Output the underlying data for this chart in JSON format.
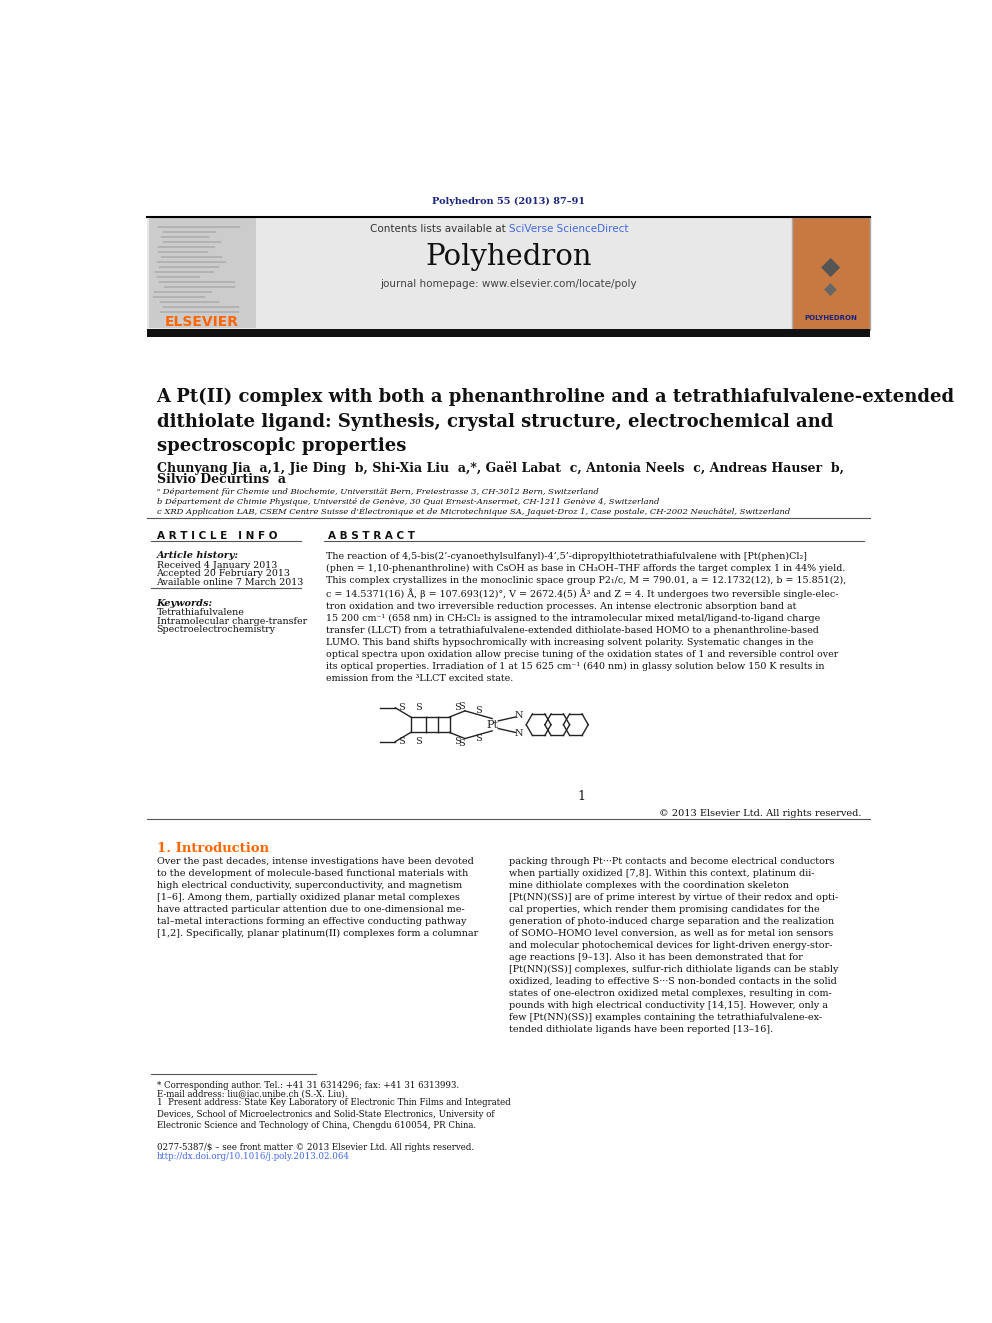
{
  "journal_ref": "Polyhedron 55 (2013) 87–91",
  "journal_ref_color": "#1a237e",
  "header_bg": "#e8e8e8",
  "elsevier_color": "#FF6600",
  "sciverse_color": "#4169E1",
  "journal_name": "Polyhedron",
  "journal_url": "journal homepage: www.elsevier.com/locate/poly",
  "title": "A Pt(II) complex with both a phenanthroline and a tetrathiafulvalene-extended\ndithiolate ligand: Synthesis, crystal structure, electrochemical and\nspectroscopic properties",
  "authors_line1": "Chunyang Jia  a,1, Jie Ding  b, Shi-Xia Liu  a,*, Gaël Labat  c, Antonia Neels  c, Andreas Hauser  b,",
  "authors_line2": "Silvio Decurtins  a",
  "affil_a": "ᵃ Département für Chemie und Biochemie, Universität Bern, Freiestrasse 3, CH-3012 Bern, Switzerland",
  "affil_b": "b Département de Chimie Physique, Université de Genève, 30 Quai Ernest-Ansermet, CH-1211 Genève 4, Switzerland",
  "affil_c": "c XRD Application LAB, CSEM Centre Suisse d’Électronique et de Microtechnique SA, Jaquet-Droz 1, Case postale, CH-2002 Neuchâtel, Switzerland",
  "article_info_header": "A R T I C L E   I N F O",
  "abstract_header": "A B S T R A C T",
  "article_history_label": "Article history:",
  "received": "Received 4 January 2013",
  "accepted": "Accepted 20 February 2013",
  "available": "Available online 7 March 2013",
  "keywords_label": "Keywords:",
  "kw1": "Tetrathiafulvalene",
  "kw2": "Intramolecular charge-transfer",
  "kw3": "Spectroelectrochemistry",
  "abstract_text": "The reaction of 4,5-bis(2’-cyanoethylsulfanyl)-4’,5’-dipropylthiotetrathiafulvalene with [Pt(phen)Cl₂]\n(phen = 1,10-phenanthroline) with CsOH as base in CH₃OH–THF affords the target complex 1 in 44% yield.\nThis complex crystallizes in the monoclinic space group P2₁/c, M = 790.01, a = 12.1732(12), b = 15.851(2),\nc = 14.5371(16) Å, β = 107.693(12)°, V = 2672.4(5) Å³ and Z = 4. It undergoes two reversible single-elec-\ntron oxidation and two irreversible reduction processes. An intense electronic absorption band at\n15 200 cm⁻¹ (658 nm) in CH₂Cl₂ is assigned to the intramolecular mixed metal/ligand-to-ligand charge\ntransfer (LLCT) from a tetrathiafulvalene-extended dithiolate-based HOMO to a phenanthroline-based\nLUMO. This band shifts hypsochromically with increasing solvent polarity. Systematic changes in the\noptical spectra upon oxidation allow precise tuning of the oxidation states of 1 and reversible control over\nits optical properties. Irradiation of 1 at 15 625 cm⁻¹ (640 nm) in glassy solution below 150 K results in\nemission from the ³LLCT excited state.",
  "copyright": "© 2013 Elsevier Ltd. All rights reserved.",
  "intro_header": "1. Introduction",
  "intro_text1": "Over the past decades, intense investigations have been devoted\nto the development of molecule-based functional materials with\nhigh electrical conductivity, superconductivity, and magnetism\n[1–6]. Among them, partially oxidized planar metal complexes\nhave attracted particular attention due to one-dimensional me-\ntal–metal interactions forming an effective conducting pathway\n[1,2]. Specifically, planar platinum(II) complexes form a columnar",
  "intro_text2": "packing through Pt···Pt contacts and become electrical conductors\nwhen partially oxidized [7,8]. Within this context, platinum dii-\nmine dithiolate complexes with the coordination skeleton\n[Pt(NN)(SS)] are of prime interest by virtue of their redox and opti-\ncal properties, which render them promising candidates for the\ngeneration of photo-induced charge separation and the realization\nof SOMO–HOMO level conversion, as well as for metal ion sensors\nand molecular photochemical devices for light-driven energy-stor-\nage reactions [9–13]. Also it has been demonstrated that for\n[Pt(NN)(SS)] complexes, sulfur-rich dithiolate ligands can be stably\noxidized, leading to effective S···S non-bonded contacts in the solid\nstates of one-electron oxidized metal complexes, resulting in com-\npounds with high electrical conductivity [14,15]. However, only a\nfew [Pt(NN)(SS)] examples containing the tetrathiafulvalene-ex-\ntended dithiolate ligands have been reported [13–16].",
  "footnote1": "* Corresponding author. Tel.: +41 31 6314296; fax: +41 31 6313993.",
  "footnote2": "E-mail address: liu@iac.unibe.ch (S.-X. Liu).",
  "footnote3": "1  Present address: State Key Laboratory of Electronic Thin Films and Integrated\nDevices, School of Microelectronics and Solid-State Electronics, University of\nElectronic Science and Technology of China, Chengdu 610054, PR China.",
  "issn_line": "0277-5387/$ – see front matter © 2013 Elsevier Ltd. All rights reserved.",
  "doi_line": "http://dx.doi.org/10.1016/j.poly.2013.02.064",
  "bg_color": "#ffffff",
  "text_color": "#000000"
}
